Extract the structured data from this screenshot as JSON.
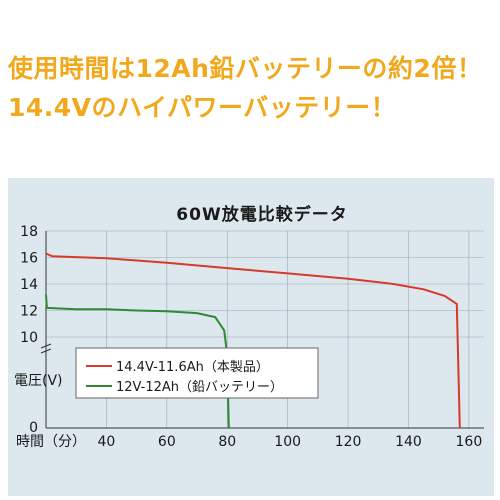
{
  "headline": {
    "line1": "使用時間は12Ah鉛バッテリーの約2倍！",
    "line2": "14.4Vのハイパワーバッテリー！"
  },
  "colors": {
    "headline": "#f2a81d",
    "panel_bg": "#dde7ee",
    "series_red": "#d63a2a",
    "series_green": "#2d8a32"
  },
  "chart_data": {
    "type": "line",
    "title": "60W放電比較データ",
    "xlabel": "時間（分）",
    "ylabel": "電圧(V)",
    "xlim": [
      20,
      165
    ],
    "ylim": [
      0,
      18
    ],
    "x_ticks": [
      40,
      60,
      80,
      100,
      120,
      140,
      160
    ],
    "y_ticks": [
      10,
      12,
      14,
      16,
      18
    ],
    "y_zero_label": "0",
    "grid": true,
    "axis_break": "y between 0 and 10",
    "legend_position": "lower-left",
    "series": [
      {
        "name": "14.4V-11.6Ah（本製品）",
        "color": "#d63a2a",
        "points": [
          [
            20,
            16.3
          ],
          [
            22,
            16.1
          ],
          [
            40,
            15.95
          ],
          [
            60,
            15.6
          ],
          [
            80,
            15.2
          ],
          [
            100,
            14.8
          ],
          [
            120,
            14.4
          ],
          [
            135,
            14.0
          ],
          [
            145,
            13.6
          ],
          [
            152,
            13.1
          ],
          [
            156,
            12.5
          ],
          [
            157,
            0
          ]
        ]
      },
      {
        "name": "12V-12Ah（鉛バッテリー）",
        "color": "#2d8a32",
        "points": [
          [
            20,
            13.2
          ],
          [
            20.3,
            12.2
          ],
          [
            30,
            12.1
          ],
          [
            40,
            12.1
          ],
          [
            50,
            12.0
          ],
          [
            60,
            11.95
          ],
          [
            70,
            11.8
          ],
          [
            76,
            11.5
          ],
          [
            79,
            10.5
          ],
          [
            80,
            8
          ],
          [
            80.5,
            0
          ]
        ]
      }
    ]
  }
}
